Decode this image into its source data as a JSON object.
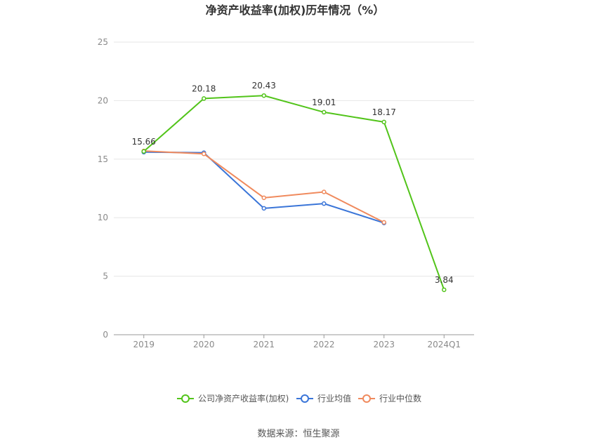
{
  "chart_data": {
    "type": "line",
    "title": "净资产收益率(加权)历年情况（%）",
    "categories": [
      "2019",
      "2020",
      "2021",
      "2022",
      "2023",
      "2024Q1"
    ],
    "ylim": [
      0,
      25
    ],
    "yticks": [
      "0",
      "5",
      "10",
      "15",
      "20",
      "25"
    ],
    "grid": true,
    "legend_position": "bottom",
    "series": [
      {
        "name": "公司净资产收益率(加权)",
        "color": "#52c41a",
        "values": [
          15.66,
          20.18,
          20.43,
          19.01,
          18.17,
          3.84
        ],
        "labels": [
          "15.66",
          "20.18",
          "20.43",
          "19.01",
          "18.17",
          "3.84"
        ]
      },
      {
        "name": "行业均值",
        "color": "#3a75d8",
        "values": [
          15.6,
          15.55,
          10.8,
          11.2,
          9.55,
          null
        ]
      },
      {
        "name": "行业中位数",
        "color": "#f08a5d",
        "values": [
          15.7,
          15.45,
          11.7,
          12.2,
          9.6,
          null
        ]
      }
    ]
  },
  "source": "数据来源：恒生聚源"
}
